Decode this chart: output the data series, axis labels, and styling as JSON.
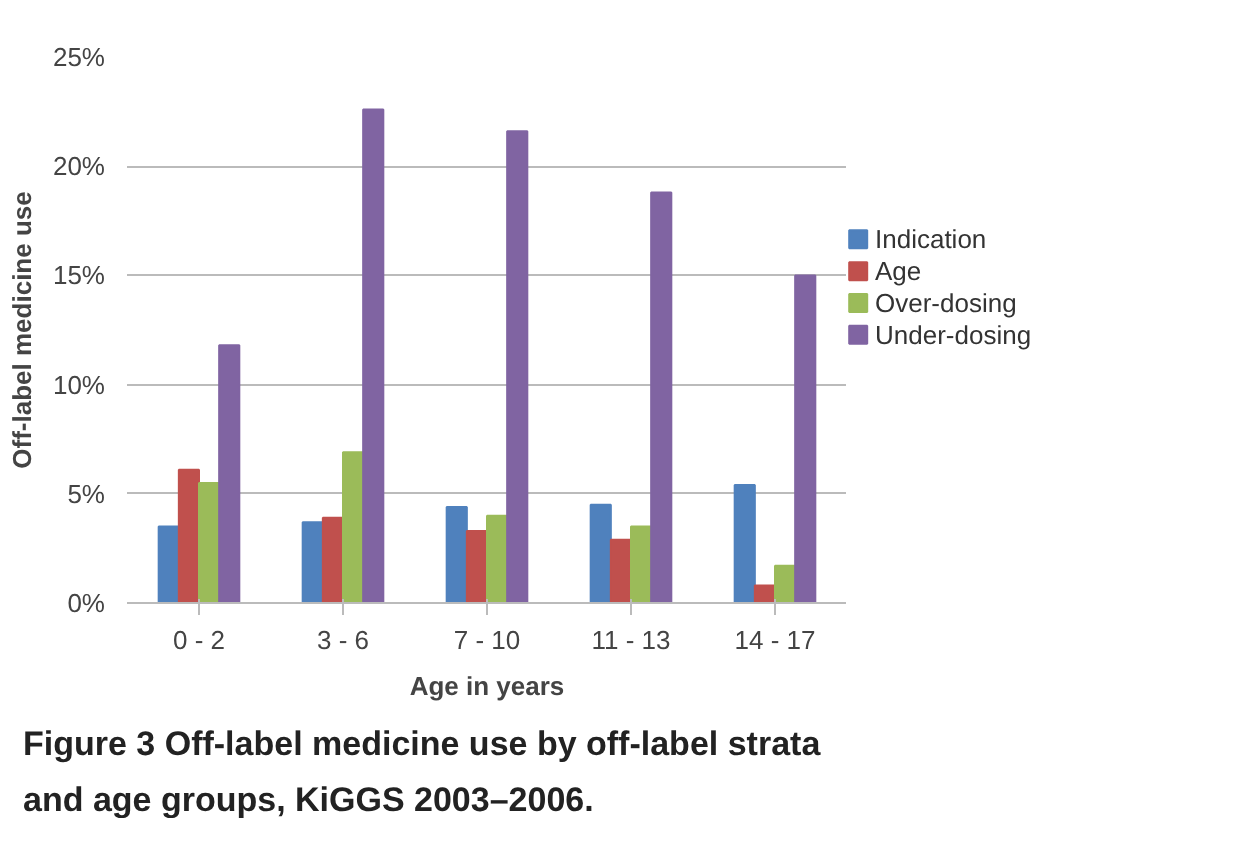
{
  "chart_data": {
    "type": "bar",
    "ylabel": "Off-label medicine use",
    "xlabel": "Age in years",
    "categories": [
      "0 - 2",
      "3 - 6",
      "7 - 10",
      "11 - 13",
      "14 - 17"
    ],
    "series": [
      {
        "name": "Indication",
        "color": "#4f81bd",
        "values": [
          3.5,
          3.7,
          4.4,
          4.5,
          5.4
        ]
      },
      {
        "name": "Age",
        "color": "#c0504d",
        "values": [
          6.1,
          3.9,
          3.3,
          2.9,
          0.8
        ]
      },
      {
        "name": "Over-dosing",
        "color": "#9bbb59",
        "values": [
          5.5,
          6.9,
          4.0,
          3.5,
          1.7
        ]
      },
      {
        "name": "Under-dosing",
        "color": "#8064a2",
        "values": [
          11.8,
          22.6,
          21.6,
          18.8,
          15.0
        ]
      }
    ],
    "ylim": [
      0,
      25
    ],
    "yticks": [
      {
        "value": 0,
        "label": "0%"
      },
      {
        "value": 5,
        "label": "5%"
      },
      {
        "value": 10,
        "label": "10%"
      },
      {
        "value": 15,
        "label": "15%"
      },
      {
        "value": 20,
        "label": "20%"
      },
      {
        "value": 25,
        "label": "25%"
      }
    ],
    "grid": "y",
    "legend": "right",
    "annotations": [
      "Figure 3 Off-label medicine use by off-label strata and age groups, KiGGS 2003–2006."
    ]
  }
}
